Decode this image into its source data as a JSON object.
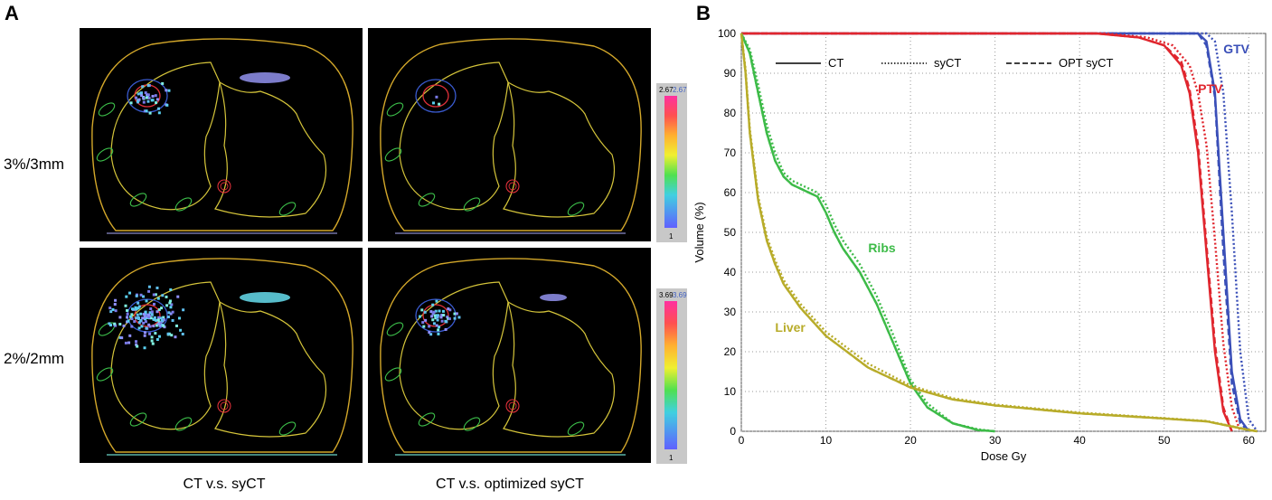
{
  "panel_a": {
    "letter": "A",
    "row_labels": [
      "3%/3mm",
      "2%/2mm"
    ],
    "column_labels": [
      "CT v.s. syCT",
      "CT v.s. optimized syCT"
    ],
    "colorbar_top": {
      "max_left": "2.67",
      "max_right": "2.67",
      "min": "1"
    },
    "colorbar_bottom": {
      "max_left": "3.69",
      "max_right": "3.69",
      "min": "1"
    },
    "colors": {
      "body": "#d4a82a",
      "lung": "#d4c43a",
      "ptv": "#e0303a",
      "gtv": "#3a5bd0",
      "ribs": "#3cbf4a"
    }
  },
  "panel_b": {
    "letter": "B"
  },
  "chart_data": {
    "type": "line",
    "xlabel": "Dose Gy",
    "ylabel": "Volume (%)",
    "xlim": [
      0,
      62
    ],
    "ylim": [
      0,
      100
    ],
    "xticks": [
      0,
      10,
      20,
      30,
      40,
      50,
      60
    ],
    "yticks": [
      0,
      10,
      20,
      30,
      40,
      50,
      60,
      70,
      80,
      90,
      100
    ],
    "grid": true,
    "legend": [
      {
        "label": "CT",
        "style": "solid"
      },
      {
        "label": "syCT",
        "style": "dotted"
      },
      {
        "label": "OPT syCT",
        "style": "dashed"
      }
    ],
    "series": [
      {
        "name": "GTV",
        "color": "#3a4fb8",
        "label_at": [
          57,
          95
        ],
        "curves": {
          "CT": [
            [
              0,
              100
            ],
            [
              54,
              100
            ],
            [
              55,
              98
            ],
            [
              56,
              85
            ],
            [
              57,
              50
            ],
            [
              58,
              15
            ],
            [
              59,
              3
            ],
            [
              60,
              0
            ]
          ],
          "syCT": [
            [
              0,
              100
            ],
            [
              55,
              100
            ],
            [
              56,
              98
            ],
            [
              57,
              85
            ],
            [
              58,
              55
            ],
            [
              59,
              20
            ],
            [
              60,
              3
            ],
            [
              61,
              0
            ]
          ],
          "OPT syCT": [
            [
              0,
              100
            ],
            [
              54,
              100
            ],
            [
              55,
              97
            ],
            [
              56,
              84
            ],
            [
              57,
              45
            ],
            [
              58,
              12
            ],
            [
              59,
              2
            ],
            [
              60,
              0
            ]
          ]
        }
      },
      {
        "name": "PTV",
        "color": "#e0262e",
        "label_at": [
          54,
          85
        ],
        "curves": {
          "CT": [
            [
              0,
              100
            ],
            [
              42,
              100
            ],
            [
              47,
              99
            ],
            [
              50,
              97
            ],
            [
              52,
              92
            ],
            [
              53,
              85
            ],
            [
              54,
              70
            ],
            [
              55,
              45
            ],
            [
              56,
              20
            ],
            [
              57,
              5
            ],
            [
              58,
              0
            ]
          ],
          "syCT": [
            [
              0,
              100
            ],
            [
              43,
              100
            ],
            [
              48,
              99
            ],
            [
              51,
              97
            ],
            [
              53,
              92
            ],
            [
              54,
              85
            ],
            [
              55,
              72
            ],
            [
              56,
              48
            ],
            [
              57,
              22
            ],
            [
              58,
              6
            ],
            [
              59,
              0
            ]
          ],
          "OPT syCT": [
            [
              0,
              100
            ],
            [
              42,
              100
            ],
            [
              47,
              99
            ],
            [
              50,
              97
            ],
            [
              52,
              93
            ],
            [
              53,
              86
            ],
            [
              54,
              72
            ],
            [
              55,
              47
            ],
            [
              56,
              22
            ],
            [
              57,
              6
            ],
            [
              58,
              0
            ]
          ]
        }
      },
      {
        "name": "Ribs",
        "color": "#3dbb48",
        "label_at": [
          15,
          45
        ],
        "curves": {
          "CT": [
            [
              0,
              100
            ],
            [
              1,
              95
            ],
            [
              2,
              85
            ],
            [
              3,
              75
            ],
            [
              4,
              68
            ],
            [
              5,
              64
            ],
            [
              6,
              62
            ],
            [
              8,
              60
            ],
            [
              9,
              59
            ],
            [
              10,
              55
            ],
            [
              11,
              50
            ],
            [
              12,
              46
            ],
            [
              14,
              40
            ],
            [
              16,
              32
            ],
            [
              18,
              22
            ],
            [
              20,
              12
            ],
            [
              22,
              6
            ],
            [
              25,
              2
            ],
            [
              28,
              0.3
            ],
            [
              30,
              0
            ]
          ],
          "syCT": [
            [
              0,
              100
            ],
            [
              1,
              96
            ],
            [
              2,
              87
            ],
            [
              3,
              77
            ],
            [
              4,
              70
            ],
            [
              5,
              65
            ],
            [
              6,
              63
            ],
            [
              8,
              61
            ],
            [
              9,
              60
            ],
            [
              10,
              57
            ],
            [
              11,
              52
            ],
            [
              12,
              48
            ],
            [
              14,
              42
            ],
            [
              16,
              34
            ],
            [
              18,
              24
            ],
            [
              20,
              13
            ],
            [
              22,
              7
            ],
            [
              25,
              2
            ],
            [
              28,
              0.5
            ],
            [
              30,
              0
            ]
          ],
          "OPT syCT": [
            [
              0,
              100
            ],
            [
              1,
              95
            ],
            [
              2,
              85
            ],
            [
              3,
              75
            ],
            [
              4,
              68
            ],
            [
              5,
              64
            ],
            [
              6,
              62
            ],
            [
              8,
              60
            ],
            [
              9,
              59
            ],
            [
              10,
              55
            ],
            [
              11,
              50
            ],
            [
              12,
              46
            ],
            [
              14,
              40
            ],
            [
              16,
              32
            ],
            [
              18,
              22
            ],
            [
              20,
              12
            ],
            [
              22,
              6
            ],
            [
              25,
              2
            ],
            [
              28,
              0.3
            ],
            [
              30,
              0
            ]
          ]
        }
      },
      {
        "name": "Liver",
        "color": "#b8ac2a",
        "label_at": [
          4,
          25
        ],
        "curves": {
          "CT": [
            [
              0,
              100
            ],
            [
              0.5,
              90
            ],
            [
              1,
              75
            ],
            [
              2,
              58
            ],
            [
              3,
              48
            ],
            [
              4,
              42
            ],
            [
              5,
              37
            ],
            [
              7,
              31
            ],
            [
              10,
              24
            ],
            [
              15,
              16
            ],
            [
              20,
              11
            ],
            [
              25,
              8
            ],
            [
              30,
              6.5
            ],
            [
              40,
              4.5
            ],
            [
              50,
              3.2
            ],
            [
              55,
              2.5
            ],
            [
              58,
              1.2
            ],
            [
              60,
              0.3
            ],
            [
              61,
              0
            ]
          ],
          "syCT": [
            [
              0,
              100
            ],
            [
              0.5,
              91
            ],
            [
              1,
              76
            ],
            [
              2,
              59
            ],
            [
              3,
              49
            ],
            [
              4,
              43
            ],
            [
              5,
              38
            ],
            [
              7,
              32
            ],
            [
              10,
              25
            ],
            [
              15,
              17
            ],
            [
              20,
              11.5
            ],
            [
              25,
              8.3
            ],
            [
              30,
              6.7
            ],
            [
              40,
              4.7
            ],
            [
              50,
              3.3
            ],
            [
              55,
              2.6
            ],
            [
              58,
              1.3
            ],
            [
              60,
              0.4
            ],
            [
              61,
              0
            ]
          ],
          "OPT syCT": [
            [
              0,
              100
            ],
            [
              0.5,
              90
            ],
            [
              1,
              75
            ],
            [
              2,
              58
            ],
            [
              3,
              48
            ],
            [
              4,
              42
            ],
            [
              5,
              37
            ],
            [
              7,
              31
            ],
            [
              10,
              24
            ],
            [
              15,
              16
            ],
            [
              20,
              11
            ],
            [
              25,
              8
            ],
            [
              30,
              6.5
            ],
            [
              40,
              4.5
            ],
            [
              50,
              3.2
            ],
            [
              55,
              2.5
            ],
            [
              58,
              1.2
            ],
            [
              60,
              0.3
            ],
            [
              61,
              0
            ]
          ]
        }
      }
    ]
  }
}
